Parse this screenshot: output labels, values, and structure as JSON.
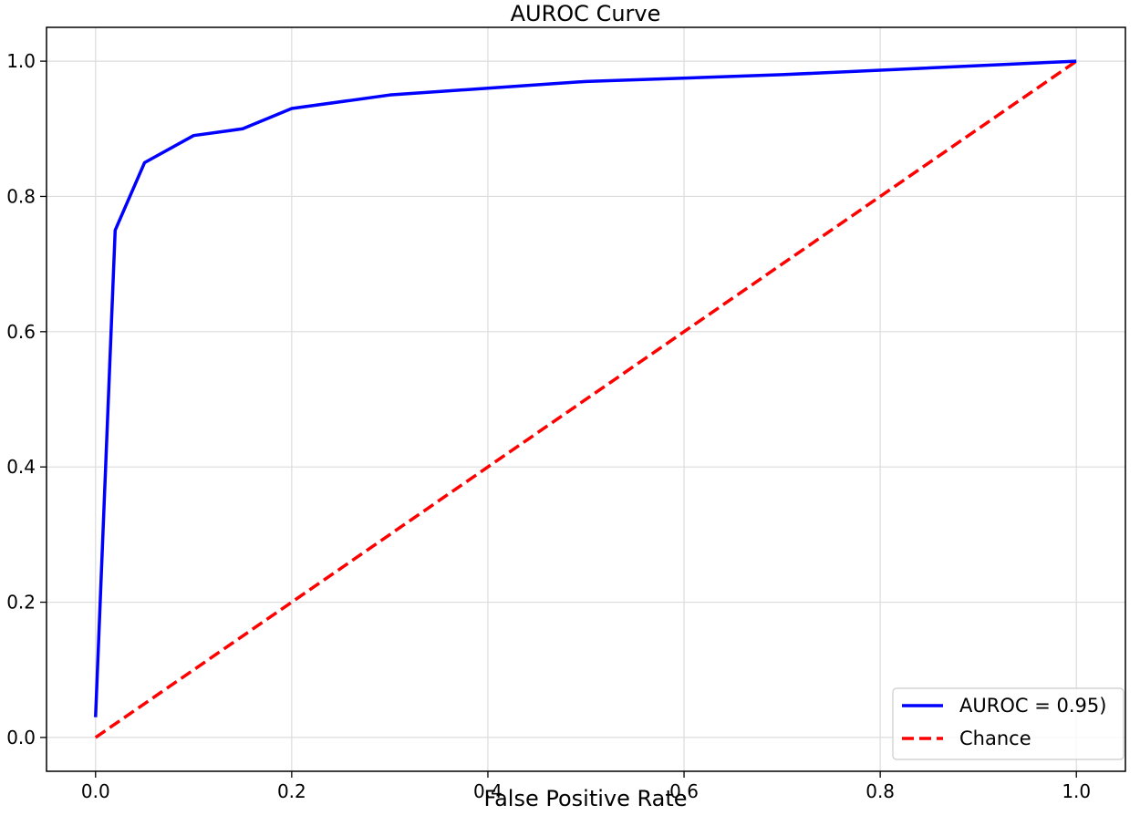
{
  "chart_data": {
    "type": "line",
    "title": "AUROC Curve",
    "xlabel": "False Positive Rate",
    "ylabel": "",
    "xlim": [
      -0.05,
      1.05
    ],
    "ylim": [
      -0.05,
      1.05
    ],
    "xticks": [
      0.0,
      0.2,
      0.4,
      0.6,
      0.8,
      1.0
    ],
    "yticks": [
      0.0,
      0.2,
      0.4,
      0.6,
      0.8,
      1.0
    ],
    "xtick_labels": [
      "0.0",
      "0.2",
      "0.4",
      "0.6",
      "0.8",
      "1.0"
    ],
    "ytick_labels": [
      "0.0",
      "0.2",
      "0.4",
      "0.6",
      "0.8",
      "1.0"
    ],
    "grid": true,
    "legend_position": "lower-right",
    "series": [
      {
        "name": "AUROC = 0.95)",
        "color": "#0000ff",
        "style": "solid",
        "x": [
          0.0,
          0.02,
          0.05,
          0.1,
          0.15,
          0.2,
          0.3,
          0.4,
          0.5,
          0.7,
          1.0
        ],
        "y": [
          0.03,
          0.75,
          0.85,
          0.89,
          0.9,
          0.93,
          0.95,
          0.96,
          0.97,
          0.98,
          1.0
        ]
      },
      {
        "name": "Chance",
        "color": "#ff0000",
        "style": "dashed",
        "x": [
          0.0,
          1.0
        ],
        "y": [
          0.0,
          1.0
        ]
      }
    ]
  }
}
